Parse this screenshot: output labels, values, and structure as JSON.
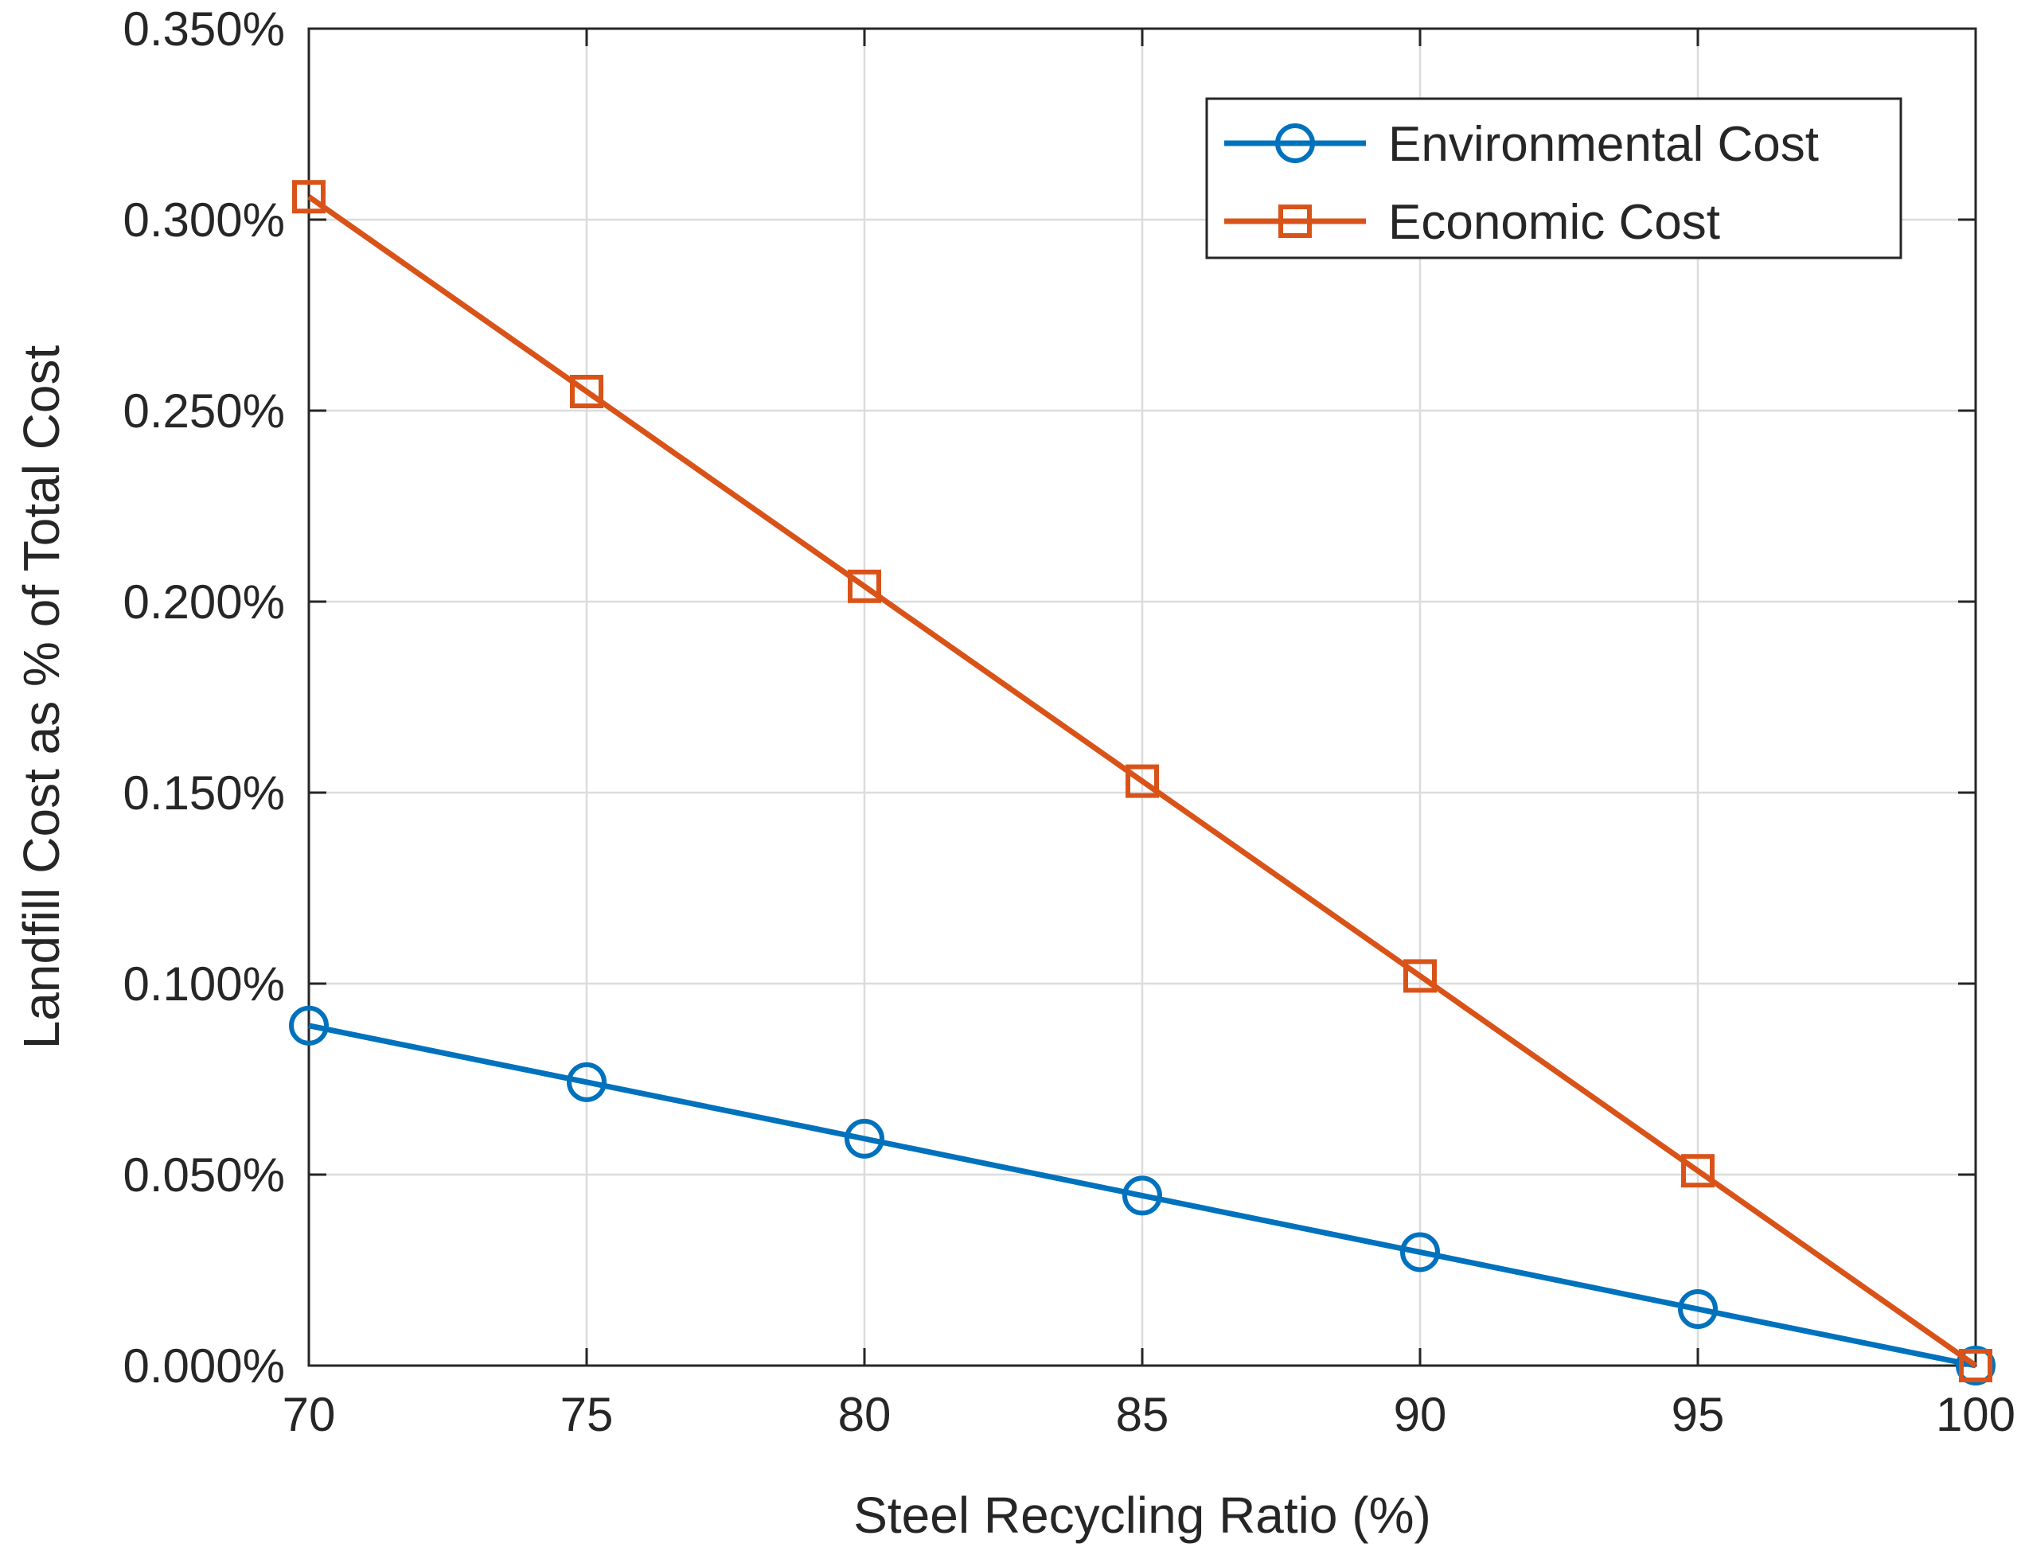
{
  "chart_data": {
    "type": "line",
    "title": "",
    "xlabel": "Steel Recycling Ratio (%)",
    "ylabel": "Landfill Cost as % of Total Cost",
    "x": [
      70,
      75,
      80,
      85,
      90,
      95,
      100
    ],
    "xlim": [
      70,
      100
    ],
    "ylim": [
      0,
      0.35
    ],
    "xticks": [
      70,
      75,
      80,
      85,
      90,
      95,
      100
    ],
    "xtick_labels": [
      "70",
      "75",
      "80",
      "85",
      "90",
      "95",
      "100"
    ],
    "yticks": [
      0,
      0.05,
      0.1,
      0.15,
      0.2,
      0.25,
      0.3,
      0.35
    ],
    "ytick_labels": [
      "0.000%",
      "0.050%",
      "0.100%",
      "0.150%",
      "0.200%",
      "0.250%",
      "0.300%",
      "0.350%"
    ],
    "grid": true,
    "legend_position": "top-right",
    "series": [
      {
        "name": "Environmental Cost",
        "marker": "circle",
        "color": "#0072BD",
        "values": [
          0.089,
          0.0742,
          0.0594,
          0.0445,
          0.0297,
          0.0148,
          0.0
        ]
      },
      {
        "name": "Economic Cost",
        "marker": "square",
        "color": "#D95319",
        "values": [
          0.306,
          0.255,
          0.204,
          0.153,
          0.102,
          0.051,
          0.0
        ]
      }
    ]
  }
}
